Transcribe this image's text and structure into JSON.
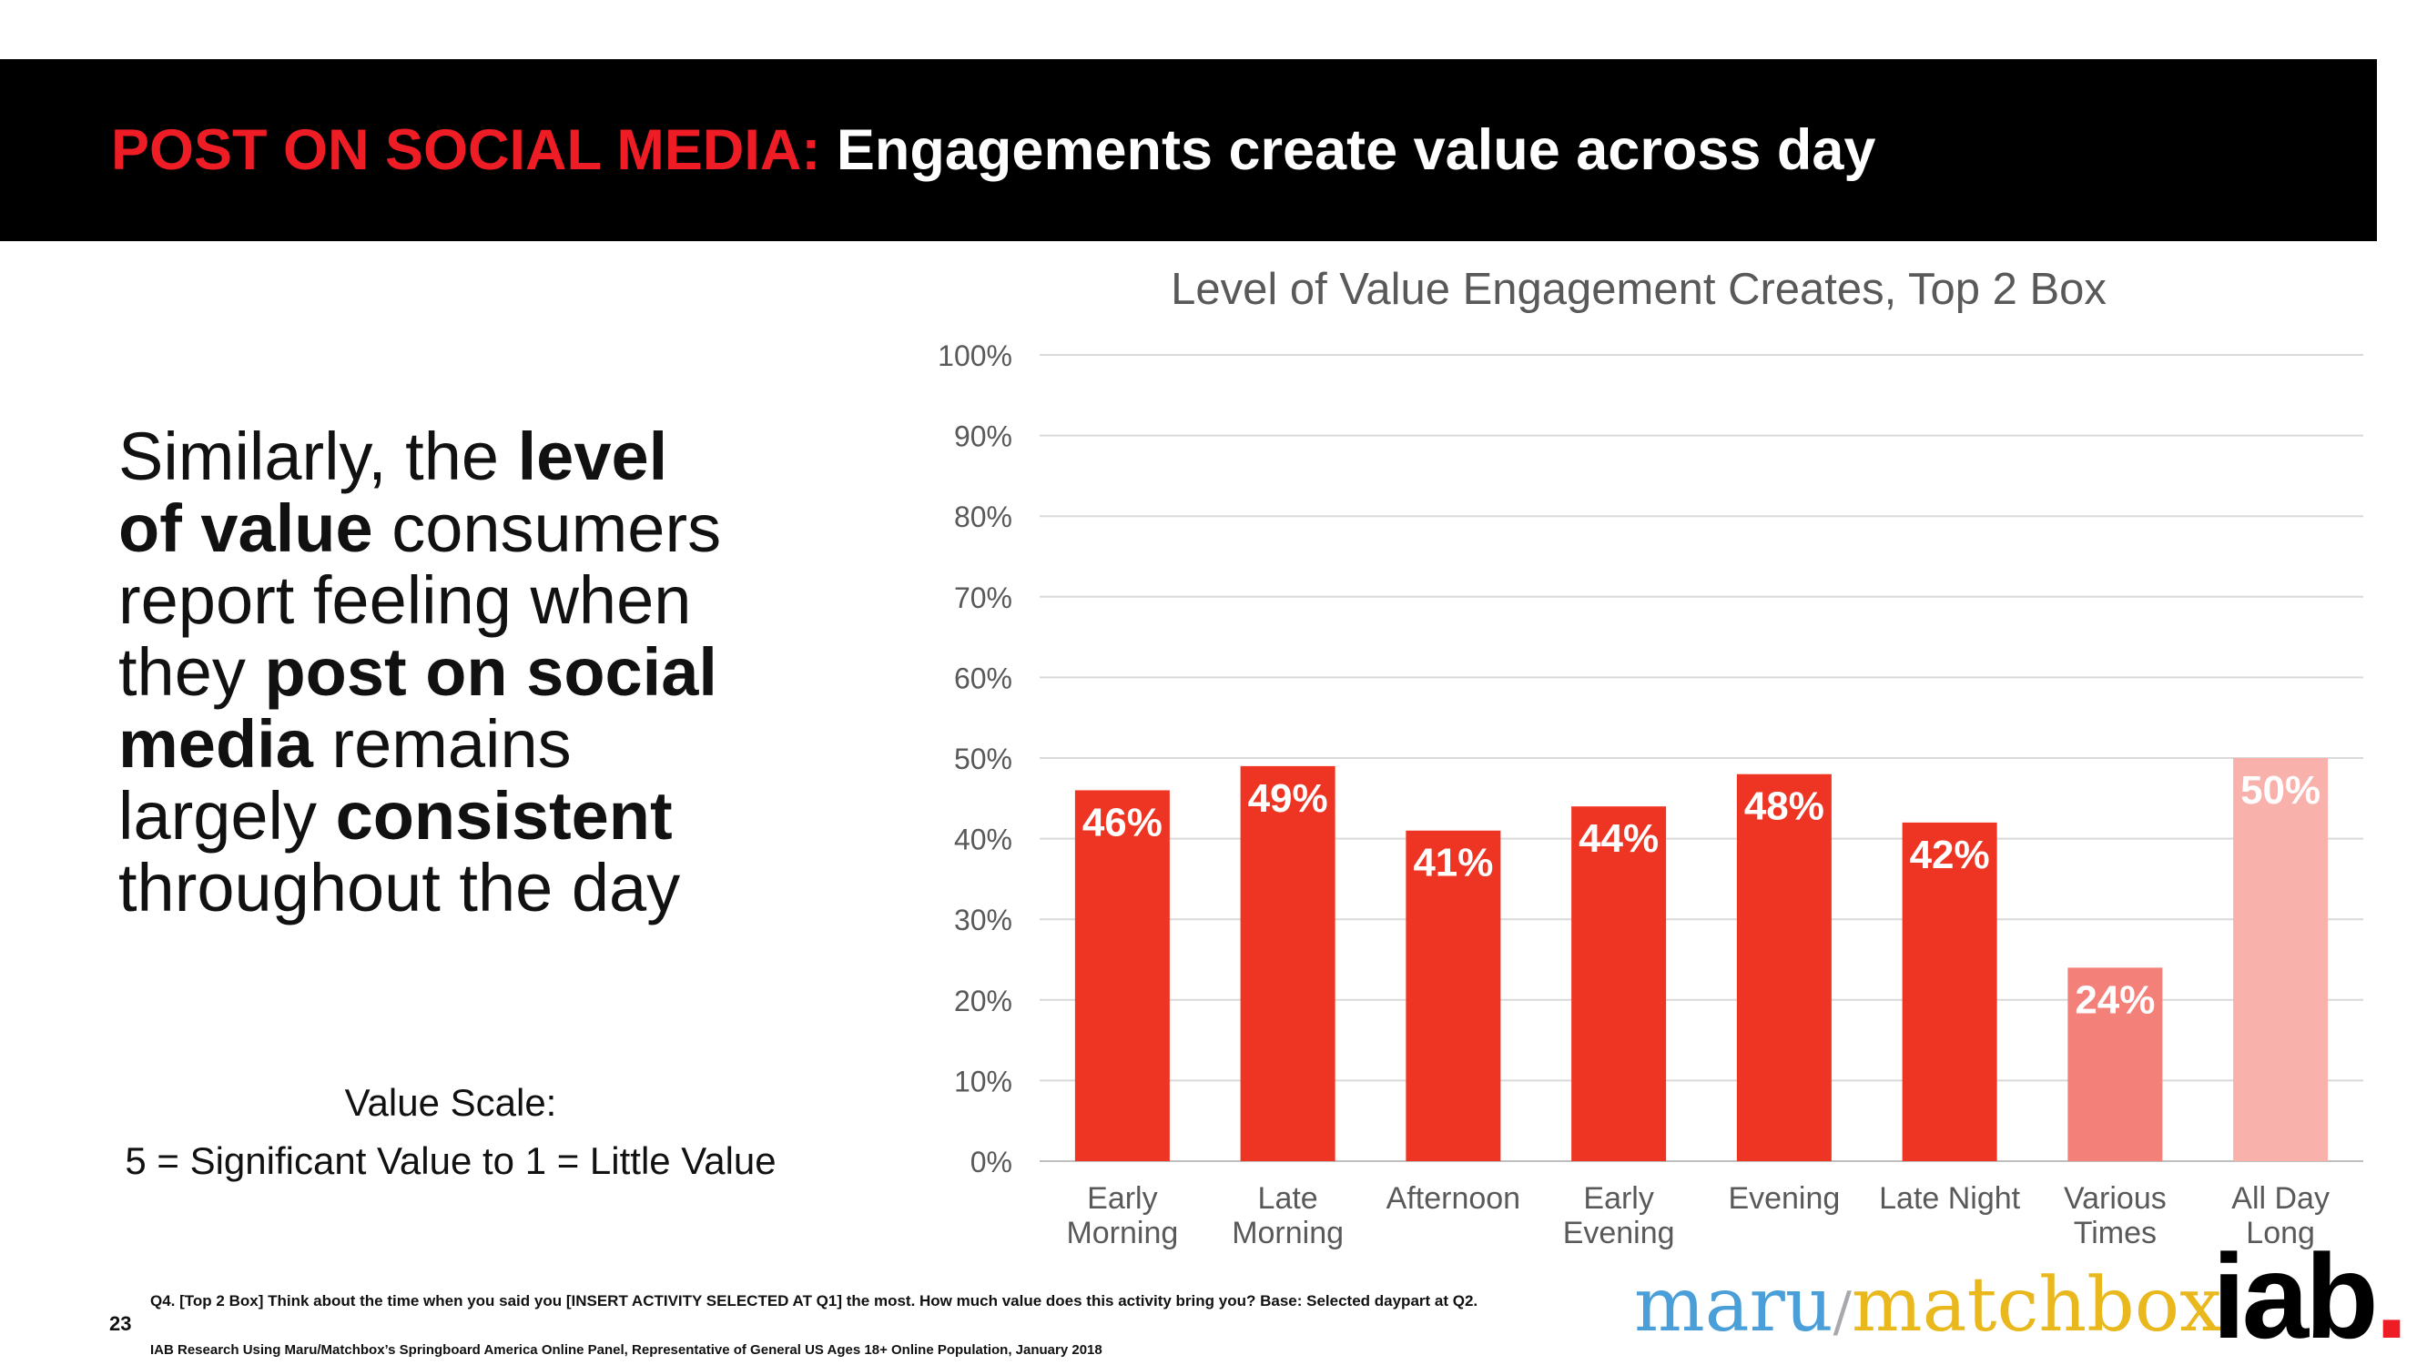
{
  "header": {
    "title_red": "POST ON SOCIAL MEDIA:",
    "title_white": " Engagements create value across day"
  },
  "body": {
    "t1": "Similarly, the ",
    "b1": "level",
    "b2": "of value",
    "t2": " consumers",
    "t3": "report feeling when",
    "t4": "they ",
    "b3": "post on social",
    "b4": "media",
    "t5": " remains",
    "t6": "largely ",
    "b5": "consistent",
    "t7": "throughout the day"
  },
  "scale": {
    "line1": "Value Scale:",
    "line2": "5 = Significant Value to 1 = Little Value"
  },
  "chart_data": {
    "type": "bar",
    "title": "Level of Value Engagement Creates, Top 2 Box",
    "categories": [
      [
        "Early",
        "Morning"
      ],
      [
        "Late",
        "Morning"
      ],
      [
        "Afternoon"
      ],
      [
        "Early",
        "Evening"
      ],
      [
        "Evening"
      ],
      [
        "Late Night"
      ],
      [
        "Various",
        "Times"
      ],
      [
        "All Day",
        "Long"
      ]
    ],
    "values": [
      46,
      49,
      41,
      44,
      48,
      42,
      24,
      50
    ],
    "data_labels": [
      "46%",
      "49%",
      "41%",
      "44%",
      "48%",
      "42%",
      "24%",
      "50%"
    ],
    "colors": [
      "#ee3524",
      "#ee3524",
      "#ee3524",
      "#ee3524",
      "#ee3524",
      "#ee3524",
      "#f3817a",
      "#f8b1ab"
    ],
    "ylim": [
      0,
      100
    ],
    "yticks": [
      0,
      10,
      20,
      30,
      40,
      50,
      60,
      70,
      80,
      90,
      100
    ],
    "ytick_labels": [
      "0%",
      "10%",
      "20%",
      "30%",
      "40%",
      "50%",
      "60%",
      "70%",
      "80%",
      "90%",
      "100%"
    ],
    "xlabel": "",
    "ylabel": "",
    "grid": true
  },
  "footer": {
    "page_number": "23",
    "question": "Q4. [Top 2 Box] Think about the time when you said you [INSERT ACTIVITY SELECTED AT Q1] the most.  How much value does this activity bring you? Base: Selected daypart at Q2.",
    "source": "IAB Research Using Maru/Matchbox’s Springboard America Online Panel, Representative of General US Ages 18+ Online Population, January 2018"
  },
  "logos": {
    "maru": "maru",
    "slash": "/",
    "matchbox": "matchbox",
    "iab": "iab",
    "iab_dot": "."
  }
}
